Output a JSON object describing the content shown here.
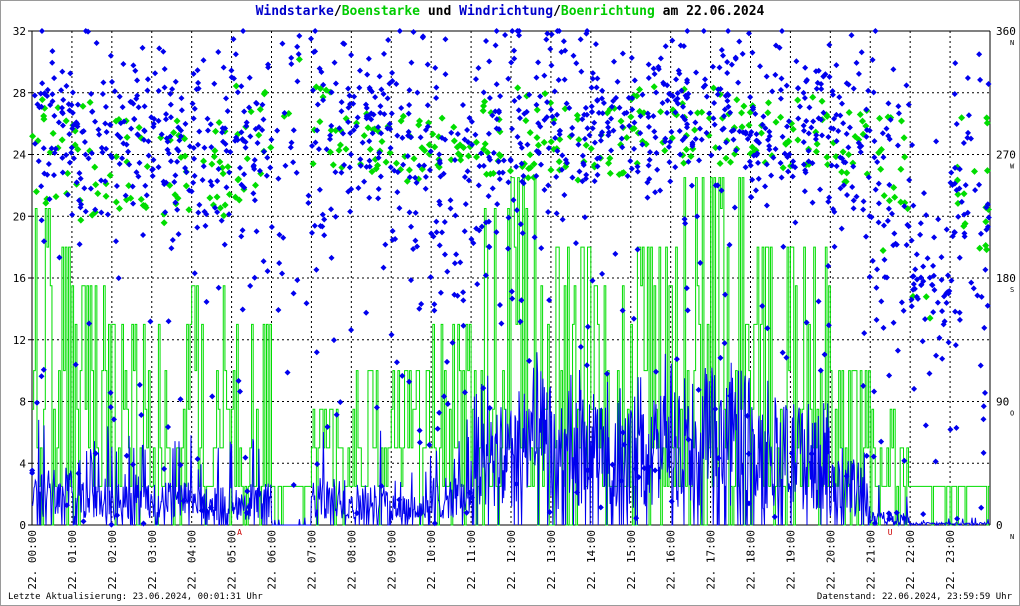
{
  "title": {
    "part1": "Windstarke",
    "sep1": "/",
    "part2": "Boenstarke",
    "mid": " und ",
    "part3": "Windrichtung",
    "sep2": "/",
    "part4": "Boenrichtung",
    "tail": " am 22.06.2024"
  },
  "footer": {
    "left": "Letzte Aktualisierung: 23.06.2024, 00:01:31 Uhr",
    "right": "Datenstand: 22.06.2024, 23:59:59 Uhr"
  },
  "colors": {
    "wind": "#0000ee",
    "gust": "#00dd00",
    "title_blue": "#0000cc",
    "title_green": "#00cc00",
    "grid": "#000000",
    "marker_red": "#cc0000"
  },
  "chart_data": {
    "type": "line+scatter",
    "title": "Windstarke/Boenstarke und Windrichtung/Boenrichtung am 22.06.2024",
    "x_ticks": [
      "22. 00:00",
      "22. 01:00",
      "22. 02:00",
      "22. 03:00",
      "22. 04:00",
      "22. 05:00",
      "22. 06:00",
      "22. 07:00",
      "22. 08:00",
      "22. 09:00",
      "22. 10:00",
      "22. 11:00",
      "22. 12:00",
      "22. 13:00",
      "22. 14:00",
      "22. 15:00",
      "22. 16:00",
      "22. 17:00",
      "22. 18:00",
      "22. 19:00",
      "22. 20:00",
      "22. 21:00",
      "22. 22:00",
      "22. 23:00"
    ],
    "y_left": {
      "min": 0,
      "max": 32,
      "ticks": [
        "0",
        "4",
        "8",
        "12",
        "16",
        "20",
        "24",
        "28",
        "32"
      ]
    },
    "y_right": {
      "min": 0,
      "max": 360,
      "ticks": [
        "0",
        "90",
        "180",
        "270",
        "360"
      ],
      "compass": [
        "N",
        "O",
        "S",
        "W",
        "N"
      ]
    },
    "grid": true,
    "red_markers": [
      "A",
      "U"
    ],
    "series": [
      {
        "name": "Windstarke",
        "kind": "line",
        "axis": "left",
        "hourly_mean": [
          2.3,
          1.8,
          2.0,
          1.7,
          1.5,
          1.6,
          0.0,
          1.8,
          1.6,
          1.2,
          1.9,
          4.2,
          5.3,
          4.5,
          4.8,
          5.0,
          5.5,
          6.0,
          4.6,
          4.7,
          2.5,
          0.5,
          0.1,
          0.1
        ],
        "hourly_max": [
          8.5,
          6.5,
          6.5,
          6.0,
          5.5,
          6.5,
          0.5,
          8.0,
          6.5,
          4.5,
          7.0,
          11.0,
          11.5,
          11.0,
          10.0,
          11.5,
          11.0,
          11.5,
          10.5,
          10.0,
          7.5,
          3.0,
          0.5,
          0.5
        ]
      },
      {
        "name": "Boenstarke",
        "kind": "line",
        "axis": "left",
        "hourly_max": [
          20.5,
          15.5,
          13.0,
          13.5,
          15.5,
          15.0,
          3.0,
          7.5,
          11.0,
          10.0,
          13.0,
          22.0,
          22.5,
          20.0,
          17.5,
          19.0,
          22.5,
          22.5,
          18.5,
          18.0,
          11.0,
          8.0,
          2.5,
          2.5
        ]
      },
      {
        "name": "Windrichtung",
        "kind": "scatter",
        "axis": "right",
        "hourly_dir_range": [
          [
            220,
            330
          ],
          [
            210,
            320
          ],
          [
            220,
            320
          ],
          [
            210,
            320
          ],
          [
            200,
            330
          ],
          [
            190,
            340
          ],
          [
            140,
            360
          ],
          [
            200,
            350
          ],
          [
            230,
            340
          ],
          [
            180,
            340
          ],
          [
            70,
            330
          ],
          [
            170,
            330
          ],
          [
            200,
            350
          ],
          [
            220,
            340
          ],
          [
            230,
            330
          ],
          [
            230,
            330
          ],
          [
            230,
            340
          ],
          [
            230,
            350
          ],
          [
            210,
            330
          ],
          [
            220,
            340
          ],
          [
            200,
            330
          ],
          [
            130,
            330
          ],
          [
            120,
            210
          ],
          [
            80,
            300
          ]
        ]
      },
      {
        "name": "Boenrichtung",
        "kind": "scatter",
        "axis": "right",
        "hourly_dir_range": [
          [
            230,
            310
          ],
          [
            220,
            310
          ],
          [
            230,
            300
          ],
          [
            220,
            300
          ],
          [
            220,
            310
          ],
          [
            230,
            320
          ],
          [
            250,
            340
          ],
          [
            260,
            320
          ],
          [
            250,
            300
          ],
          [
            250,
            300
          ],
          [
            260,
            300
          ],
          [
            250,
            310
          ],
          [
            250,
            320
          ],
          [
            250,
            310
          ],
          [
            250,
            310
          ],
          [
            250,
            320
          ],
          [
            260,
            320
          ],
          [
            260,
            320
          ],
          [
            260,
            310
          ],
          [
            260,
            320
          ],
          [
            250,
            310
          ],
          [
            200,
            300
          ],
          [
            150,
            180
          ],
          [
            200,
            300
          ]
        ]
      }
    ]
  }
}
